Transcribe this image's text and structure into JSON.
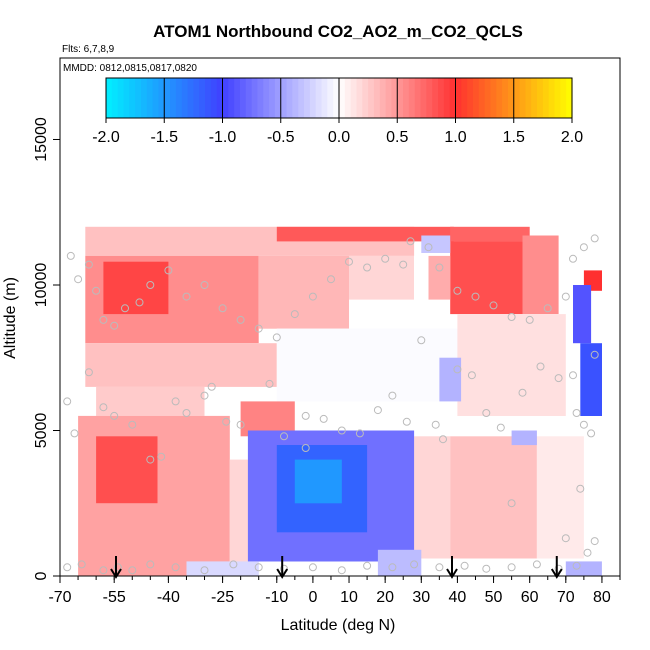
{
  "chart_data": {
    "type": "heatmap",
    "title": "ATOM1 Northbound CO2_AO2_m_CO2_QCLS",
    "flights_label": "Flts: 6,7,8,9",
    "dates_label": "MMDD: 0812,0815,0817,0820",
    "xlabel": "Latitude (deg N)",
    "ylabel": "Altitude (m)",
    "xlim": [
      -70,
      85
    ],
    "ylim": [
      0,
      17800
    ],
    "x_ticks": [
      -70,
      -55,
      -40,
      -25,
      -10,
      0,
      10,
      20,
      30,
      40,
      50,
      60,
      70,
      80
    ],
    "x_tick_labels": [
      "-70",
      "-55",
      "-40",
      "-25",
      "-10",
      "0",
      "10",
      "20",
      "30",
      "40",
      "50",
      "60",
      "70",
      "80"
    ],
    "y_ticks": [
      0,
      5000,
      10000,
      15000
    ],
    "y_tick_labels": [
      "0",
      "5000",
      "10000",
      "15000"
    ],
    "colorbar": {
      "range": [
        -2.0,
        2.0
      ],
      "ticks": [
        -2.0,
        -1.5,
        -1.0,
        -0.5,
        0.0,
        0.5,
        1.0,
        1.5,
        2.0
      ],
      "tick_labels": [
        "-2.0",
        "-1.5",
        "-1.0",
        "-0.5",
        "0.0",
        "0.5",
        "1.0",
        "1.5",
        "2.0"
      ],
      "colors": [
        "#00f0ff",
        "#4040ff",
        "#ffffff",
        "#ff3030",
        "#ffff00"
      ]
    },
    "arrow_latitudes": [
      -54.5,
      -8.5,
      38.5,
      67.5
    ],
    "regions": [
      {
        "lat": [
          -63,
          28
        ],
        "alt": [
          11000,
          12000
        ],
        "value": 0.3
      },
      {
        "lat": [
          -10,
          39
        ],
        "alt": [
          11500,
          12000
        ],
        "value": 0.8
      },
      {
        "lat": [
          -63,
          -15
        ],
        "alt": [
          8000,
          11000
        ],
        "value": 0.55
      },
      {
        "lat": [
          -58,
          -40
        ],
        "alt": [
          9000,
          10800
        ],
        "value": 0.9
      },
      {
        "lat": [
          -15,
          10
        ],
        "alt": [
          8500,
          11000
        ],
        "value": 0.35
      },
      {
        "lat": [
          10,
          28
        ],
        "alt": [
          9500,
          11000
        ],
        "value": 0.2
      },
      {
        "lat": [
          38,
          60
        ],
        "alt": [
          11500,
          12000
        ],
        "value": 0.75
      },
      {
        "lat": [
          38,
          58
        ],
        "alt": [
          9000,
          11500
        ],
        "value": 0.85
      },
      {
        "lat": [
          58,
          68
        ],
        "alt": [
          9000,
          11700
        ],
        "value": 0.55
      },
      {
        "lat": [
          32,
          38
        ],
        "alt": [
          9500,
          11000
        ],
        "value": 0.4
      },
      {
        "lat": [
          75,
          80
        ],
        "alt": [
          9800,
          10500
        ],
        "value": 1.0
      },
      {
        "lat": [
          -63,
          -10
        ],
        "alt": [
          6500,
          8000
        ],
        "value": 0.3
      },
      {
        "lat": [
          -60,
          -30
        ],
        "alt": [
          5500,
          6500
        ],
        "value": 0.25
      },
      {
        "lat": [
          -10,
          40
        ],
        "alt": [
          6000,
          8500
        ],
        "value": -0.02
      },
      {
        "lat": [
          40,
          70
        ],
        "alt": [
          5500,
          9000
        ],
        "value": 0.15
      },
      {
        "lat": [
          -65,
          -23
        ],
        "alt": [
          0,
          5500
        ],
        "value": 0.45
      },
      {
        "lat": [
          -60,
          -43
        ],
        "alt": [
          2500,
          4800
        ],
        "value": 0.85
      },
      {
        "lat": [
          -23,
          -8
        ],
        "alt": [
          500,
          4000
        ],
        "value": 0.2
      },
      {
        "lat": [
          -20,
          -5
        ],
        "alt": [
          4800,
          6000
        ],
        "value": 0.6
      },
      {
        "lat": [
          28,
          38
        ],
        "alt": [
          600,
          4800
        ],
        "value": 0.2
      },
      {
        "lat": [
          38,
          62
        ],
        "alt": [
          600,
          4800
        ],
        "value": 0.3
      },
      {
        "lat": [
          62,
          75
        ],
        "alt": [
          600,
          4800
        ],
        "value": 0.1
      },
      {
        "lat": [
          35,
          41
        ],
        "alt": [
          6000,
          7500
        ],
        "value": -0.4
      },
      {
        "lat": [
          55,
          62
        ],
        "alt": [
          4500,
          5000
        ],
        "value": -0.4
      },
      {
        "lat": [
          -18,
          28
        ],
        "alt": [
          500,
          5000
        ],
        "value": -0.75
      },
      {
        "lat": [
          -10,
          15
        ],
        "alt": [
          1500,
          4500
        ],
        "value": -1.2
      },
      {
        "lat": [
          -5,
          8
        ],
        "alt": [
          2500,
          4000
        ],
        "value": -1.5
      },
      {
        "lat": [
          -35,
          -15
        ],
        "alt": [
          0,
          500
        ],
        "value": -0.2
      },
      {
        "lat": [
          18,
          30
        ],
        "alt": [
          0,
          900
        ],
        "value": -0.35
      },
      {
        "lat": [
          70,
          80
        ],
        "alt": [
          0,
          500
        ],
        "value": -0.4
      },
      {
        "lat": [
          72,
          77
        ],
        "alt": [
          8000,
          10000
        ],
        "value": -0.9
      },
      {
        "lat": [
          74,
          80
        ],
        "alt": [
          5500,
          8000
        ],
        "value": -1.1
      },
      {
        "lat": [
          30,
          38
        ],
        "alt": [
          11100,
          11700
        ],
        "value": -0.3
      }
    ],
    "points": [
      [
        -67,
        11000
      ],
      [
        -65,
        10200
      ],
      [
        -62,
        10700
      ],
      [
        -60,
        9800
      ],
      [
        -58,
        8800
      ],
      [
        -55,
        8600
      ],
      [
        -52,
        9200
      ],
      [
        -48,
        9400
      ],
      [
        -45,
        10000
      ],
      [
        -40,
        10500
      ],
      [
        -35,
        9600
      ],
      [
        -30,
        10000
      ],
      [
        -25,
        9200
      ],
      [
        -20,
        8800
      ],
      [
        -15,
        8500
      ],
      [
        -10,
        8200
      ],
      [
        -5,
        9000
      ],
      [
        0,
        9600
      ],
      [
        5,
        10200
      ],
      [
        10,
        10800
      ],
      [
        15,
        10600
      ],
      [
        20,
        10900
      ],
      [
        25,
        10700
      ],
      [
        27,
        11500
      ],
      [
        32,
        11300
      ],
      [
        35,
        10600
      ],
      [
        40,
        9800
      ],
      [
        45,
        9600
      ],
      [
        50,
        9300
      ],
      [
        55,
        8900
      ],
      [
        60,
        8800
      ],
      [
        65,
        9200
      ],
      [
        70,
        9600
      ],
      [
        72,
        10900
      ],
      [
        75,
        11300
      ],
      [
        78,
        11600
      ],
      [
        -68,
        6000
      ],
      [
        -66,
        4900
      ],
      [
        -62,
        7000
      ],
      [
        -58,
        5800
      ],
      [
        -55,
        5500
      ],
      [
        -50,
        5200
      ],
      [
        -45,
        4000
      ],
      [
        -42,
        4100
      ],
      [
        -38,
        6000
      ],
      [
        -35,
        5600
      ],
      [
        -30,
        6200
      ],
      [
        -28,
        6500
      ],
      [
        -24,
        5300
      ],
      [
        -20,
        5200
      ],
      [
        -12,
        6600
      ],
      [
        -8,
        4800
      ],
      [
        -2,
        5500
      ],
      [
        3,
        5400
      ],
      [
        8,
        5000
      ],
      [
        13,
        4900
      ],
      [
        18,
        5700
      ],
      [
        22,
        6200
      ],
      [
        26,
        5300
      ],
      [
        30,
        8100
      ],
      [
        34,
        5200
      ],
      [
        36,
        4700
      ],
      [
        40,
        7100
      ],
      [
        44,
        6900
      ],
      [
        48,
        5600
      ],
      [
        52,
        5100
      ],
      [
        58,
        6300
      ],
      [
        63,
        7200
      ],
      [
        68,
        6800
      ],
      [
        72,
        6900
      ],
      [
        73,
        5600
      ],
      [
        75,
        5200
      ],
      [
        77,
        4900
      ],
      [
        -68,
        300
      ],
      [
        -64,
        400
      ],
      [
        -58,
        200
      ],
      [
        -54,
        300
      ],
      [
        -50,
        200
      ],
      [
        -45,
        400
      ],
      [
        -38,
        300
      ],
      [
        -30,
        200
      ],
      [
        -22,
        400
      ],
      [
        -15,
        300
      ],
      [
        -8,
        250
      ],
      [
        0,
        300
      ],
      [
        8,
        200
      ],
      [
        15,
        350
      ],
      [
        22,
        300
      ],
      [
        28,
        400
      ],
      [
        35,
        300
      ],
      [
        42,
        350
      ],
      [
        48,
        250
      ],
      [
        55,
        300
      ],
      [
        62,
        400
      ],
      [
        68,
        250
      ],
      [
        73,
        350
      ],
      [
        76,
        800
      ],
      [
        78,
        1200
      ],
      [
        -2,
        4400
      ],
      [
        55,
        2500
      ],
      [
        70,
        1300
      ],
      [
        74,
        3000
      ],
      [
        78,
        7600
      ]
    ]
  }
}
